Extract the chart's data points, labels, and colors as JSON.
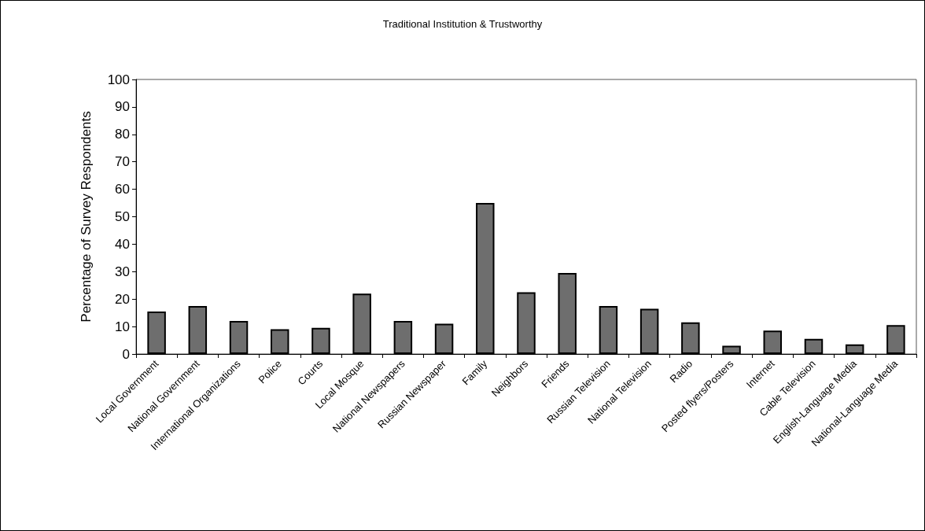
{
  "chart_data": {
    "type": "bar",
    "title": "Traditional Institution & Trustworthy",
    "ylabel": "Percentage of Survey Respondents",
    "categories": [
      "Local Government",
      "National Government",
      "International Organizations",
      "Police",
      "Courts",
      "Local Mosque",
      "National Newspapers",
      "Russian Newspaper",
      "Family",
      "Neighbors",
      "Friends",
      "Russian Television",
      "National Television",
      "Radio",
      "Posted flyers/Posters",
      "Internet",
      "Cable Television",
      "English-Language Media",
      "National-Language Media"
    ],
    "values": [
      15.5,
      17.5,
      12,
      9,
      9.5,
      22,
      12,
      11,
      55,
      22.5,
      29.5,
      17.5,
      16.5,
      11.5,
      3,
      8.5,
      5.5,
      3.5,
      10.5
    ],
    "color": "#6e6e6e",
    "ylim": [
      0,
      100
    ],
    "yticks": [
      0,
      10,
      20,
      30,
      40,
      50,
      60,
      70,
      80,
      90,
      100
    ],
    "grid": false
  }
}
